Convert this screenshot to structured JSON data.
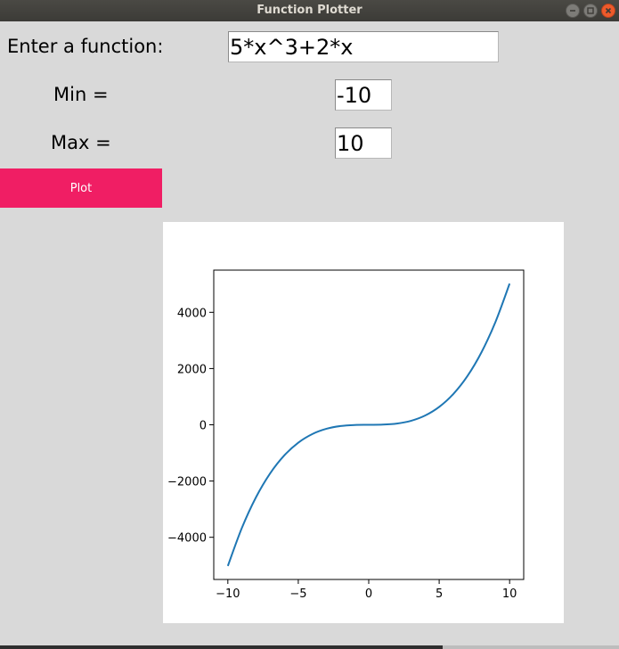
{
  "window": {
    "title": "Function Plotter"
  },
  "form": {
    "function_label": "Enter a function:",
    "function_value": "5*x^3+2*x",
    "min_label": "Min =",
    "min_value": "-10",
    "max_label": "Max =",
    "max_value": "10",
    "plot_label": "Plot"
  },
  "colors": {
    "plot_button": "#f01e64",
    "series_line": "#1f77b4",
    "close_button": "#ee5a2b"
  },
  "icons": {
    "minimize": "minimize-icon",
    "maximize": "maximize-icon",
    "close": "close-icon"
  },
  "chart_data": {
    "type": "line",
    "title": "",
    "xlabel": "",
    "ylabel": "",
    "function": "5*x^3+2*x",
    "xlim": [
      -11,
      11
    ],
    "ylim": [
      -5500,
      5500
    ],
    "x_ticks": [
      -10,
      -5,
      0,
      5,
      10
    ],
    "x_tick_labels": [
      "−10",
      "−5",
      "0",
      "5",
      "10"
    ],
    "y_ticks": [
      -4000,
      -2000,
      0,
      2000,
      4000
    ],
    "y_tick_labels": [
      "−4000",
      "−2000",
      "0",
      "2000",
      "4000"
    ],
    "grid": false,
    "series": [
      {
        "x": [
          -10,
          -9,
          -8,
          -7,
          -6,
          -5,
          -4,
          -3,
          -2,
          -1,
          0,
          1,
          2,
          3,
          4,
          5,
          6,
          7,
          8,
          9,
          10
        ],
        "y": [
          -5020,
          -3663,
          -2576,
          -1729,
          -1092,
          -635,
          -328,
          -141,
          -44,
          -7,
          0,
          7,
          44,
          141,
          328,
          635,
          1092,
          1729,
          2576,
          3663,
          5020
        ]
      }
    ]
  }
}
